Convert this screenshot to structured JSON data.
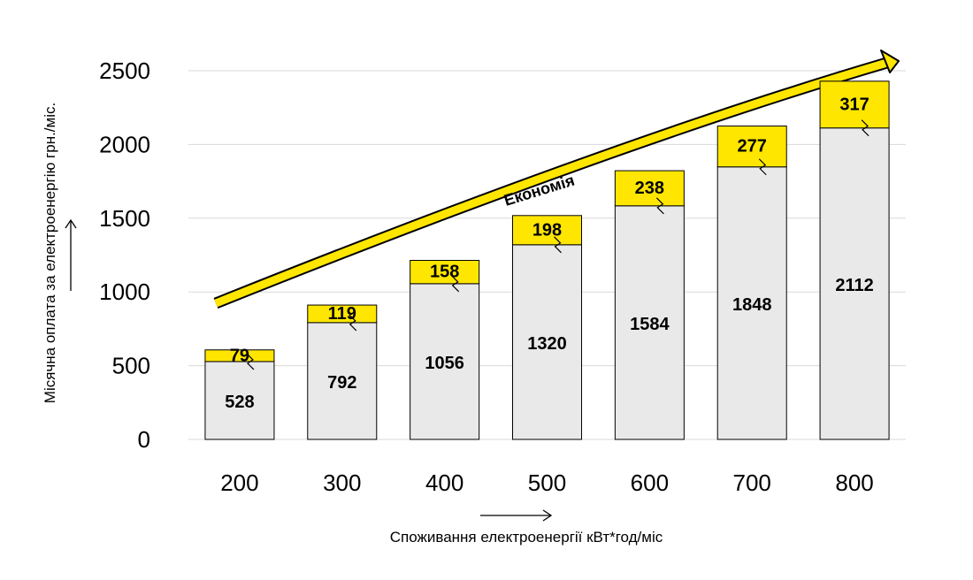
{
  "chart_data": {
    "type": "bar",
    "stacked": true,
    "categories": [
      "200",
      "300",
      "400",
      "500",
      "600",
      "700",
      "800"
    ],
    "series": [
      {
        "values": [
          528,
          792,
          1056,
          1320,
          1584,
          1848,
          2112
        ],
        "color": "#E9E9E9"
      },
      {
        "values": [
          79,
          119,
          158,
          198,
          238,
          277,
          317
        ],
        "color": "#FFE600"
      }
    ],
    "xlabel": "Споживання електроенергії кВт*год/міс",
    "ylabel": "Місячна оплата за електроенергію грн./міс.",
    "ylim": [
      0,
      2500
    ],
    "yticks": [
      0,
      500,
      1000,
      1500,
      2000,
      2500
    ],
    "grid": true,
    "annotation": "Економія",
    "colors": {
      "arrow": "#FFE600",
      "bar_outline": "#000000",
      "grid": "#D9D9D9"
    }
  }
}
